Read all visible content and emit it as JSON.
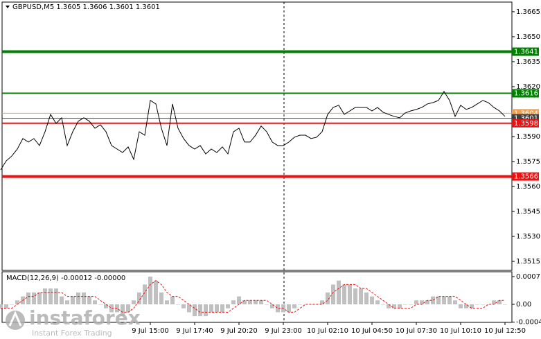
{
  "chart_data": [
    {
      "type": "line",
      "title": "GBPUSD,M5  1.3605 1.3606 1.3601 1.3601",
      "color": "#000000",
      "categories": [
        null,
        null,
        null,
        null,
        null,
        null,
        null,
        null,
        null,
        null,
        null,
        null,
        null,
        null,
        null,
        null,
        null,
        null,
        null,
        null,
        null,
        null,
        null,
        null,
        null,
        null,
        null,
        "9 Jul 15:00",
        null,
        null,
        null,
        null,
        null,
        null,
        null,
        "9 Jul 17:40",
        null,
        null,
        null,
        null,
        null,
        null,
        null,
        "9 Jul 20:20",
        null,
        null,
        null,
        null,
        null,
        null,
        null,
        "9 Jul 23:00",
        null,
        null,
        null,
        null,
        null,
        null,
        null,
        "10 Jul 02:10",
        null,
        null,
        null,
        null,
        null,
        null,
        null,
        "10 Jul 04:50",
        null,
        null,
        null,
        null,
        null,
        null,
        null,
        "10 Jul 07:30",
        null,
        null,
        null,
        null,
        null,
        null,
        null,
        "10 Jul 10:10",
        null,
        null,
        null,
        null,
        null,
        null,
        null,
        "10 Jul 12:50"
      ],
      "values": [
        1.357,
        1.35754,
        1.35783,
        1.35825,
        1.35888,
        1.35867,
        1.35888,
        1.35846,
        1.35929,
        1.36033,
        1.35979,
        1.36013,
        1.35846,
        1.35929,
        1.35992,
        1.36013,
        1.35992,
        1.3595,
        1.35971,
        1.35929,
        1.35846,
        1.35825,
        1.35804,
        1.35838,
        1.35763,
        1.35929,
        1.35908,
        1.36117,
        1.36096,
        1.3595,
        1.35846,
        1.36096,
        1.3595,
        1.35888,
        1.35846,
        1.35825,
        1.35846,
        1.35796,
        1.35825,
        1.35804,
        1.35838,
        1.35796,
        1.35929,
        1.3595,
        1.35867,
        1.35867,
        1.35908,
        1.35963,
        1.35929,
        1.35867,
        1.35846,
        1.35846,
        1.35867,
        1.35896,
        1.35908,
        1.35908,
        1.35888,
        1.35896,
        1.35929,
        1.36033,
        1.36075,
        1.36088,
        1.36033,
        1.36054,
        1.36075,
        1.36075,
        1.36075,
        1.36054,
        1.36075,
        1.36046,
        1.36033,
        1.36021,
        1.36013,
        1.36042,
        1.36054,
        1.36063,
        1.36075,
        1.36096,
        1.36104,
        1.36117,
        1.36171,
        1.36117,
        1.36021,
        1.36088,
        1.36063,
        1.36075,
        1.36096,
        1.36117,
        1.36104,
        1.36075,
        1.36054,
        1.36021
      ],
      "ylim": [
        1.35096,
        1.36708
      ],
      "yticks": [
        1.3665,
        {
          "value": 1.365,
          "label": "1.3650"
        },
        1.3635,
        {
          "value": 1.362,
          "label": "1.3620"
        },
        {
          "value": 1.359,
          "label": "1.3590"
        },
        1.3575,
        {
          "value": 1.356,
          "label": "1.3560"
        },
        1.3545,
        {
          "value": 1.353,
          "label": "1.3530"
        },
        1.3515
      ],
      "levels": [
        {
          "value": 1.3641,
          "color": "#008000"
        },
        {
          "value": 1.3616,
          "color": "#008000"
        },
        {
          "value": 1.3604,
          "color": "#f0a050"
        },
        {
          "value": 1.3601,
          "color": "#404040"
        },
        {
          "value": 1.3598,
          "color": "#ee1111"
        },
        {
          "value": 1.3566,
          "color": "#ee1111"
        }
      ]
    },
    {
      "type": "macd",
      "title": "MACD(12,26,9) -0.00012 -0.00000",
      "histogram": {
        "color": "#c0c0c0",
        "values": [
          -0.0001,
          -0.0001,
          0,
          0.0001,
          0.0002,
          0.0003,
          0.0003,
          0.0003,
          0.0004,
          0.0004,
          0.0004,
          0.0002,
          0.0001,
          0.0002,
          0.0003,
          0.0003,
          0.0002,
          0.0001,
          0,
          -0.0001,
          -0.0002,
          -0.0002,
          -0.0003,
          -0.0002,
          0.0001,
          0.0003,
          0.0005,
          0.0007,
          0.0006,
          0.0003,
          0.0001,
          0.0002,
          0,
          -0.0001,
          -0.0002,
          -0.0003,
          -0.0003,
          -0.0003,
          -0.0002,
          -0.0002,
          -0.0002,
          -0.0001,
          0.0001,
          0.0002,
          0.0001,
          0.0001,
          0.0001,
          0.0001,
          0,
          -0.0001,
          -0.0002,
          -0.0002,
          -0.0002,
          -0.0001,
          0,
          0,
          0,
          0,
          0.0001,
          0.0003,
          0.0005,
          0.0006,
          0.0005,
          0.0005,
          0.0004,
          0.0004,
          0.0003,
          0.0002,
          0.0001,
          0,
          -0.0001,
          -0.0001,
          -0.0001,
          0,
          0,
          0.0001,
          0.0001,
          0.0001,
          0.0002,
          0.0002,
          0.0002,
          0.0002,
          0.0001,
          -0.0001,
          -0.0001,
          -0.0001,
          0,
          0,
          0,
          0.0001,
          0.0001,
          0
        ]
      },
      "signal": {
        "color": "#ee1111",
        "values": [
          -0.0001,
          -0.0001,
          -0.0001,
          0,
          0.0001,
          0.0002,
          0.0002,
          0.0003,
          0.0003,
          0.0003,
          0.0003,
          0.0003,
          0.0002,
          0.0002,
          0.0002,
          0.0002,
          0.0002,
          0.0002,
          0.0001,
          0,
          -0.0001,
          -0.0001,
          -0.0002,
          -0.0002,
          -0.0001,
          0.0001,
          0.0003,
          0.0005,
          0.0006,
          0.0005,
          0.0003,
          0.0002,
          0.0002,
          0.0001,
          0,
          -0.0001,
          -0.0002,
          -0.0002,
          -0.0002,
          -0.0002,
          -0.0002,
          -0.0002,
          -0.0001,
          0,
          0.0001,
          0.0001,
          0.0001,
          0.0001,
          0.0001,
          0,
          -0.0001,
          -0.0001,
          -0.0002,
          -0.0002,
          -0.0001,
          0,
          0,
          0,
          0,
          0.0001,
          0.0003,
          0.0004,
          0.0005,
          0.0005,
          0.0005,
          0.0004,
          0.0004,
          0.0003,
          0.0002,
          0.0001,
          0,
          -0.0001,
          -0.0001,
          -0.0001,
          -0.0001,
          0,
          0,
          0.0001,
          0.0001,
          0.0002,
          0.0002,
          0.0002,
          0.0002,
          0.0001,
          0,
          -0.0001,
          -0.0001,
          -0.0001,
          0,
          0,
          0.0001,
          0.0001
        ]
      },
      "ylim": [
        -0.000455,
        0.000805
      ],
      "yticks": [
        0.0007,
        {
          "value": 0,
          "label": "0.00"
        },
        -0.00045
      ]
    }
  ],
  "watermark": {
    "brand": "instaforex",
    "tagline": "Instant Forex Trading"
  }
}
